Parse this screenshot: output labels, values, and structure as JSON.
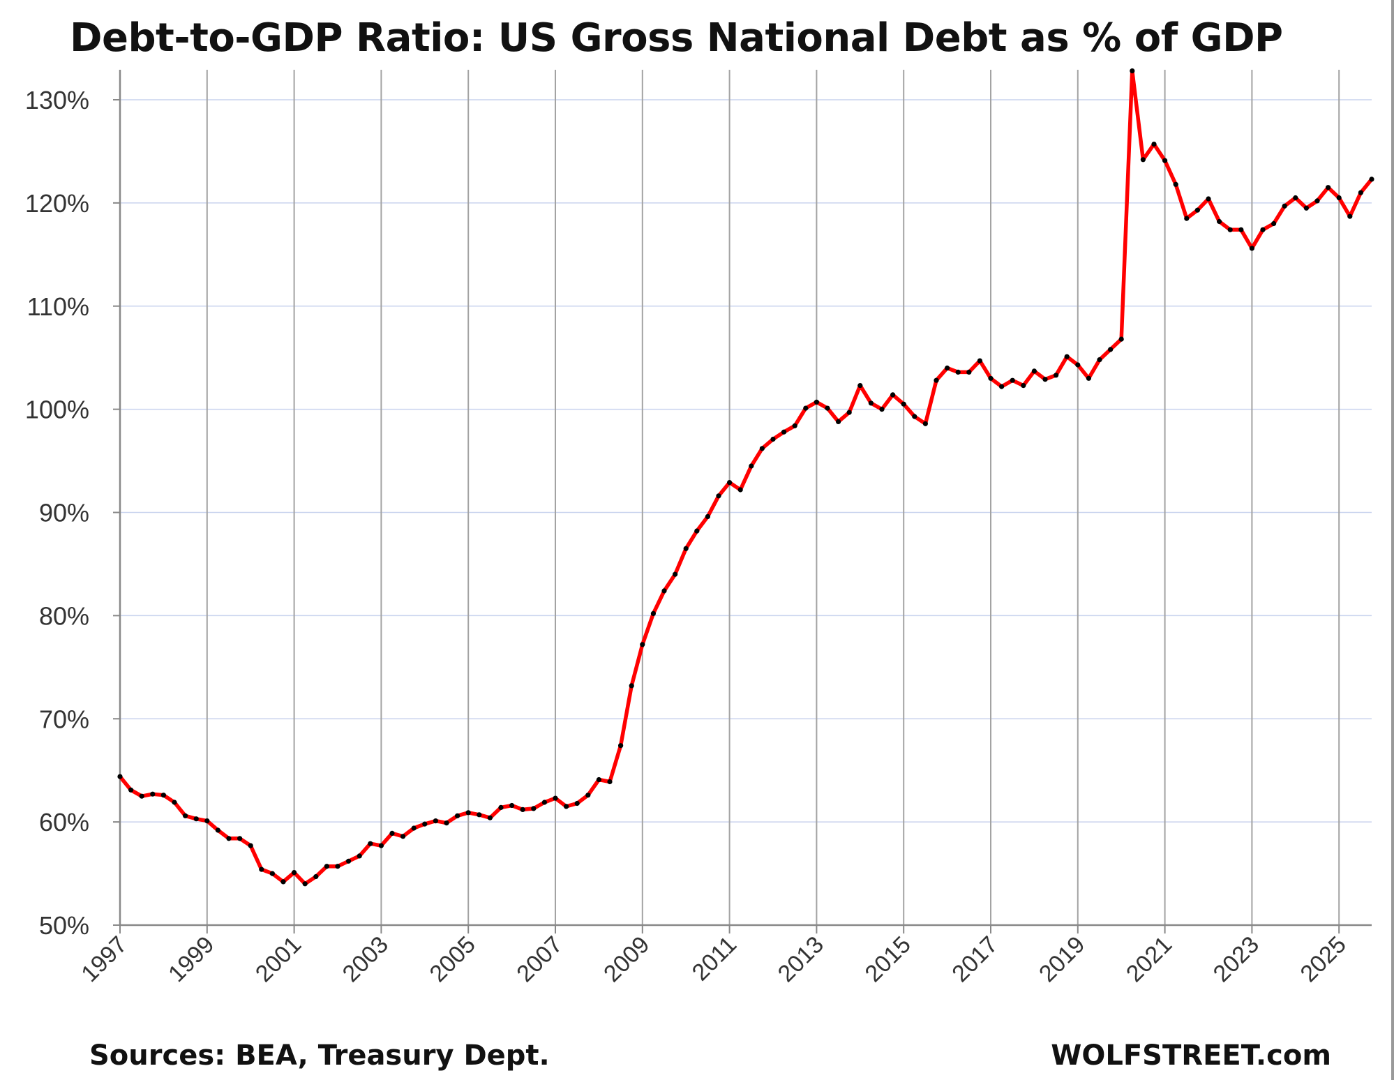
{
  "chart_data": {
    "type": "line",
    "title": "Debt-to-GDP Ratio: US Gross National Debt as % of GDP",
    "source": "Sources: BEA, Treasury Dept.",
    "brand": "WOLFSTREET.com",
    "xlabel": "",
    "ylabel": "",
    "xlim": [
      1997,
      2025.75
    ],
    "ylim": [
      50,
      133
    ],
    "y_ticks": [
      50,
      60,
      70,
      80,
      90,
      100,
      110,
      120,
      130
    ],
    "y_tick_labels": [
      "50%",
      "60%",
      "70%",
      "80%",
      "90%",
      "100%",
      "110%",
      "120%",
      "130%"
    ],
    "x_ticks": [
      1997,
      1999,
      2001,
      2003,
      2005,
      2007,
      2009,
      2011,
      2013,
      2015,
      2017,
      2019,
      2021,
      2023,
      2025
    ],
    "x_tick_labels": [
      "1997",
      "1999",
      "2001",
      "2003",
      "2005",
      "2007",
      "2009",
      "2011",
      "2013",
      "2015",
      "2017",
      "2019",
      "2021",
      "2023",
      "2025"
    ],
    "grid": true,
    "line_color": "#ff0000",
    "marker_color": "#000000",
    "series": [
      {
        "x_start": 1997,
        "x_step": 0.25,
        "values": [
          64.4,
          63.1,
          62.5,
          62.7,
          62.6,
          61.9,
          60.6,
          60.3,
          60.1,
          59.2,
          58.4,
          58.4,
          57.7,
          55.4,
          55.0,
          54.2,
          55.1,
          54.0,
          54.7,
          55.7,
          55.7,
          56.2,
          56.7,
          57.9,
          57.7,
          58.9,
          58.6,
          59.4,
          59.8,
          60.1,
          59.9,
          60.6,
          60.9,
          60.7,
          60.4,
          61.4,
          61.6,
          61.2,
          61.3,
          61.9,
          62.3,
          61.5,
          61.8,
          62.6,
          64.1,
          63.9,
          67.4,
          73.2,
          77.2,
          80.2,
          82.4,
          84.0,
          86.5,
          88.2,
          89.6,
          91.6,
          92.9,
          92.2,
          94.5,
          96.2,
          97.1,
          97.8,
          98.4,
          100.1,
          100.7,
          100.1,
          98.8,
          99.7,
          102.3,
          100.6,
          100.0,
          101.4,
          100.5,
          99.3,
          98.6,
          102.8,
          104.0,
          103.6,
          103.6,
          104.7,
          103.0,
          102.2,
          102.8,
          102.3,
          103.7,
          102.9,
          103.3,
          105.1,
          104.3,
          103.0,
          104.8,
          105.8,
          106.8,
          132.8,
          124.2,
          125.7,
          124.1,
          121.8,
          118.5,
          119.3,
          120.4,
          118.2,
          117.4,
          117.4,
          115.6,
          117.4,
          118.0,
          119.7,
          120.5,
          119.5,
          120.2,
          121.5,
          120.5,
          118.7,
          121.0,
          122.3
        ]
      }
    ]
  }
}
